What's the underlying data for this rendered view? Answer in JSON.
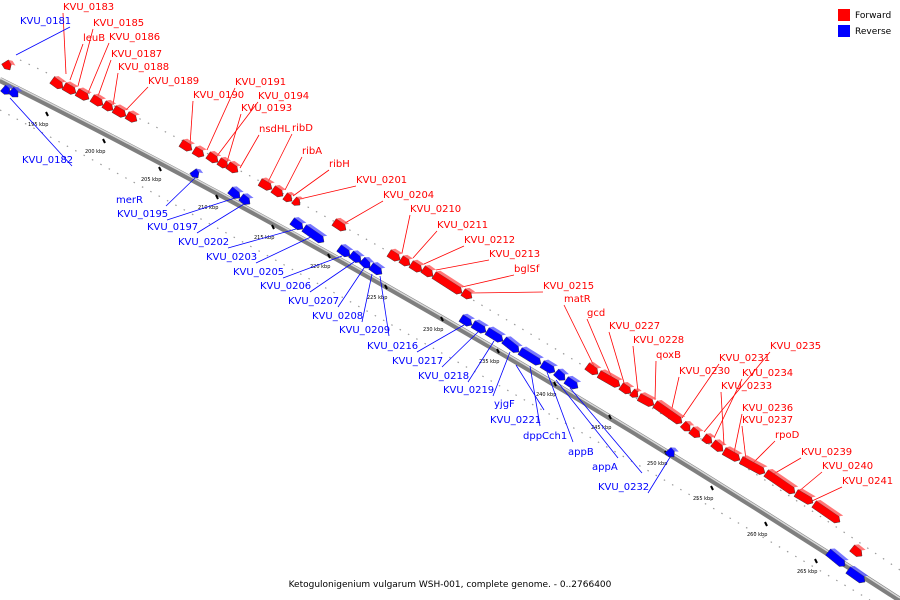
{
  "legend": {
    "forward_label": "Forward",
    "reverse_label": "Reverse",
    "forward_color": "#ff0000",
    "reverse_color": "#0000ff"
  },
  "caption": "Ketogulonigenium vulgarum WSH-001, complete genome. - 0..2766400",
  "ticks": [
    "195 kbp",
    "200 kbp",
    "205 kbp",
    "210 kbp",
    "215 kbp",
    "220 kbp",
    "225 kbp",
    "230 kbp",
    "235 kbp",
    "240 kbp",
    "245 kbp",
    "250 kbp",
    "255 kbp",
    "260 kbp",
    "265 kbp"
  ],
  "forward_genes": [
    "KVU_0183",
    "KVU_0185",
    "leuB",
    "KVU_0186",
    "KVU_0187",
    "KVU_0188",
    "KVU_0189",
    "KVU_0190",
    "KVU_0191",
    "KVU_0194",
    "KVU_0193",
    "nsdHL",
    "ribD",
    "ribA",
    "ribH",
    "KVU_0201",
    "KVU_0204",
    "KVU_0210",
    "KVU_0211",
    "KVU_0212",
    "KVU_0213",
    "bglSf",
    "KVU_0215",
    "matR",
    "gcd",
    "KVU_0227",
    "KVU_0228",
    "qoxB",
    "KVU_0231",
    "KVU_0235",
    "KVU_0230",
    "KVU_0234",
    "KVU_0233",
    "KVU_0236",
    "KVU_0237",
    "rpoD",
    "KVU_0239",
    "KVU_0240",
    "KVU_0241"
  ],
  "reverse_genes": [
    "KVU_0181",
    "KVU_0182",
    "merR",
    "KVU_0195",
    "KVU_0197",
    "KVU_0202",
    "KVU_0203",
    "KVU_0205",
    "KVU_0206",
    "KVU_0207",
    "KVU_0208",
    "KVU_0209",
    "KVU_0216",
    "KVU_0217",
    "KVU_0218",
    "KVU_0219",
    "yjgF",
    "KVU_0221",
    "dppCch1",
    "appB",
    "appA",
    "KVU_0232"
  ]
}
